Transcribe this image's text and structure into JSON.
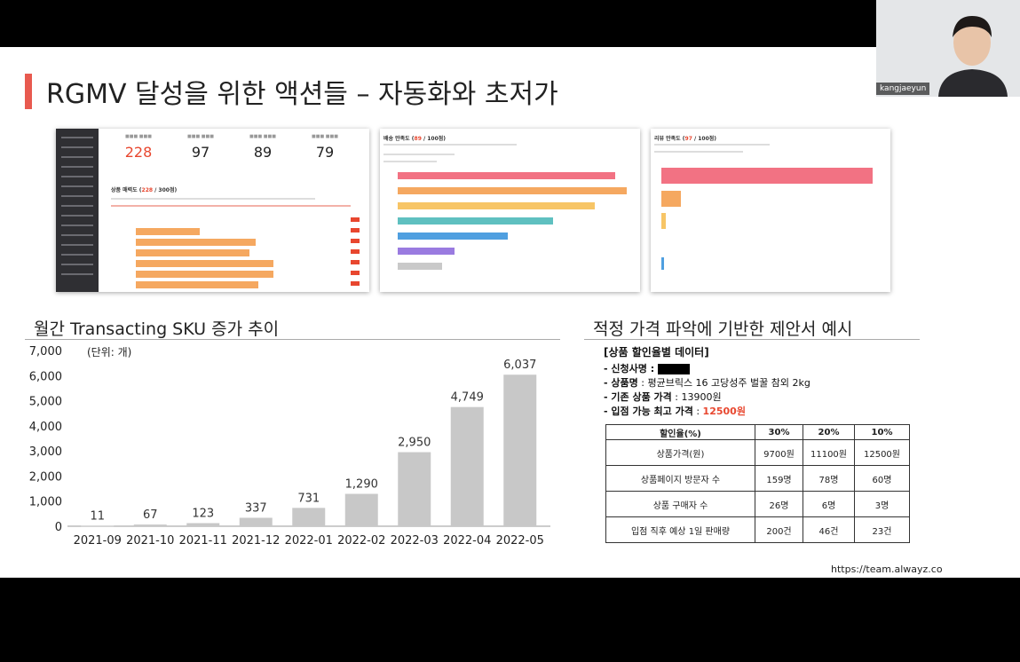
{
  "slide": {
    "title": "RGMV 달성을 위한 액션들 – 자동화와 초저가",
    "footer_url": "https://team.alwayz.co"
  },
  "thumbnails": {
    "dashboard": {
      "kpis": [
        {
          "value": "228",
          "highlight": true
        },
        {
          "value": "97",
          "highlight": false
        },
        {
          "value": "89",
          "highlight": false
        },
        {
          "value": "79",
          "highlight": false
        }
      ],
      "section_prefix": "상품 매력도 (",
      "section_score": "228",
      "section_suffix": " / 300점)"
    },
    "delivery": {
      "prefix": "배송 만족도 (",
      "score": "89",
      "suffix": " / 100점)"
    },
    "review": {
      "prefix": "리뷰 만족도 (",
      "score": "97",
      "suffix": " / 100점)"
    }
  },
  "sku_section": {
    "title": "월간 Transacting SKU 증가 추이"
  },
  "proposal_section": {
    "title": "적정 가격 파악에 기반한 제안서 예시"
  },
  "chart_data": {
    "type": "bar",
    "title": "",
    "unit_note": "(단위: 개)",
    "categories": [
      "2021-09",
      "2021-10",
      "2021-11",
      "2021-12",
      "2022-01",
      "2022-02",
      "2022-03",
      "2022-04",
      "2022-05"
    ],
    "values": [
      11,
      67,
      123,
      337,
      731,
      1290,
      2950,
      4749,
      6037
    ],
    "value_labels": [
      "11",
      "67",
      "123",
      "337",
      "731",
      "1,290",
      "2,950",
      "4,749",
      "6,037"
    ],
    "ylim": [
      0,
      7000
    ],
    "yticks": [
      0,
      1000,
      2000,
      3000,
      4000,
      5000,
      6000,
      7000
    ],
    "ytick_labels": [
      "0",
      "1,000",
      "2,000",
      "3,000",
      "4,000",
      "5,000",
      "6,000",
      "7,000"
    ],
    "bar_color": "#c8c8c8",
    "grid": false
  },
  "proposal": {
    "header": "[상품 할인율별 데이터]",
    "lines": [
      {
        "label": "- 신청사명 :",
        "value": ""
      },
      {
        "label": "- 상품명",
        "value": " : 평균브릭스 16 고당성주 벌꿀 참외 2kg"
      },
      {
        "label": "- 기존 상품 가격",
        "value": " : 13900원"
      },
      {
        "label": "- 입점 가능 최고 가격",
        "value": " : "
      }
    ],
    "max_price": "12500원",
    "table": {
      "headers": [
        "할인율(%)",
        "30%",
        "20%",
        "10%"
      ],
      "rows": [
        [
          "상품가격(원)",
          "9700원",
          "11100원",
          "12500원"
        ],
        [
          "상품페이지 방문자 수",
          "159명",
          "78명",
          "60명"
        ],
        [
          "상품 구매자 수",
          "26명",
          "6명",
          "3명"
        ],
        [
          "입점 직후 예상 1일 판매량",
          "200건",
          "46건",
          "23건"
        ]
      ]
    }
  },
  "video": {
    "participant_name": "kangjaeyun"
  },
  "colors": {
    "accent": "#e85a4f",
    "highlight": "#e8472f"
  }
}
